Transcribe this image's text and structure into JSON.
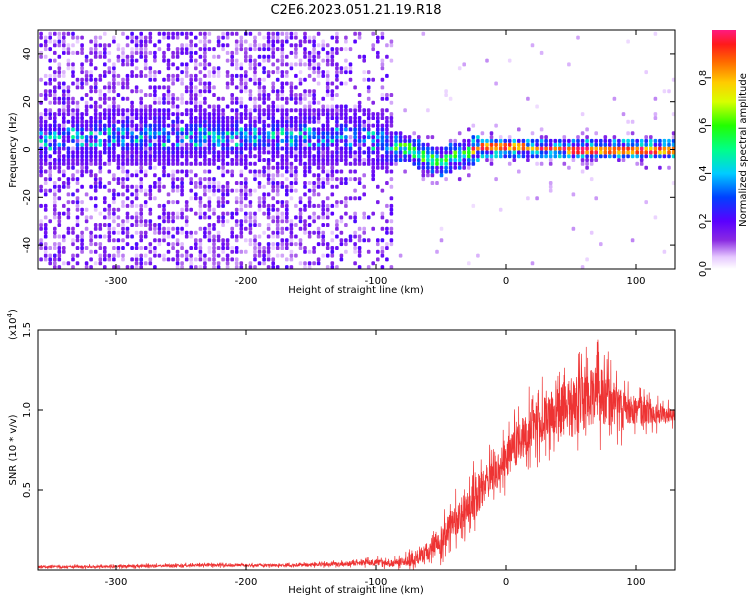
{
  "title": "C2E6.2023.051.21.19.R18",
  "chart_data": [
    {
      "type": "heatmap",
      "name": "spectrogram",
      "xlabel": "Height of straight line (km)",
      "ylabel": "Frequency (Hz)",
      "xlim": [
        -360,
        130
      ],
      "ylim": [
        -50,
        50
      ],
      "xticks": [
        -300,
        -200,
        -100,
        0,
        100
      ],
      "yticks": [
        -40,
        -20,
        0,
        20,
        40
      ],
      "colorbar": {
        "label": "Normalized spectral amplitude",
        "range": [
          0.0,
          1.0
        ],
        "ticks": [
          0.0,
          0.2,
          0.4,
          0.6,
          0.8
        ],
        "colormap": "rainbow (white-violet-blue-cyan-green-yellow-orange-red-magenta)"
      },
      "dominant_frequency_track": {
        "x": [
          -350,
          -300,
          -250,
          -200,
          -150,
          -110,
          -90,
          -75,
          -60,
          -50,
          -40,
          -30,
          -20,
          0,
          50,
          100,
          130
        ],
        "y": [
          4,
          6,
          6,
          5,
          6,
          5,
          2,
          0,
          -4,
          -5,
          -3,
          -1,
          1,
          1,
          0,
          0,
          0
        ]
      },
      "notes": "Broadband noise at heights below -90 km; narrow high-amplitude line near 0 Hz above -30 km"
    },
    {
      "type": "line",
      "name": "snr",
      "xlabel": "Height of straight line (km)",
      "ylabel": "SNR (10 * v/v)",
      "y_scale_label": "(x10",
      "y_scale_exponent": "4",
      "y_scale_suffix": ")",
      "xlim": [
        -360,
        130
      ],
      "ylim": [
        0,
        1.5
      ],
      "xticks": [
        -300,
        -200,
        -100,
        0,
        100
      ],
      "yticks": [
        0.5,
        1.0,
        1.5
      ],
      "series": [
        {
          "color": "#ee3333",
          "x": [
            -360,
            -320,
            -280,
            -240,
            -200,
            -160,
            -120,
            -100,
            -90,
            -80,
            -70,
            -60,
            -50,
            -40,
            -30,
            -20,
            -10,
            0,
            10,
            20,
            30,
            40,
            50,
            60,
            70,
            80,
            90,
            100,
            110,
            120,
            130
          ],
          "y": [
            0.02,
            0.02,
            0.025,
            0.03,
            0.03,
            0.03,
            0.04,
            0.05,
            0.04,
            0.05,
            0.07,
            0.12,
            0.18,
            0.3,
            0.4,
            0.5,
            0.6,
            0.7,
            0.8,
            0.9,
            0.95,
            1.0,
            1.05,
            1.05,
            1.1,
            1.05,
            1.0,
            1.0,
            0.98,
            0.97,
            0.96
          ],
          "noise_amplitude": [
            0.01,
            0.01,
            0.012,
            0.012,
            0.012,
            0.012,
            0.02,
            0.03,
            0.03,
            0.04,
            0.06,
            0.08,
            0.12,
            0.15,
            0.16,
            0.17,
            0.18,
            0.18,
            0.18,
            0.2,
            0.2,
            0.22,
            0.22,
            0.24,
            0.26,
            0.22,
            0.16,
            0.12,
            0.1,
            0.08,
            0.07
          ]
        }
      ]
    }
  ]
}
